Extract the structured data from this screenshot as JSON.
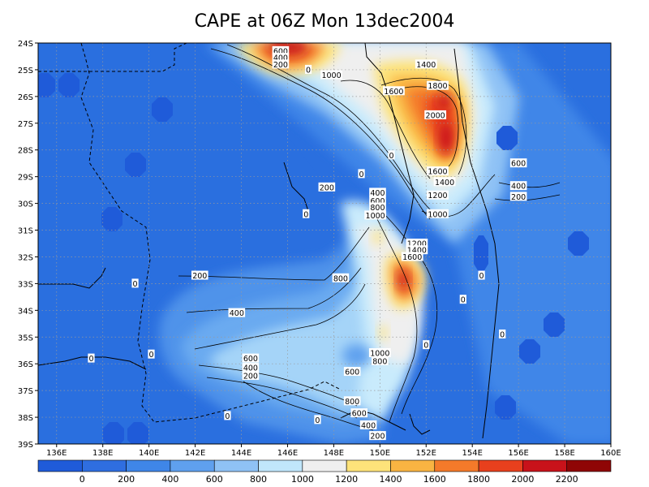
{
  "chart_data": {
    "type": "heatmap",
    "title": "CAPE at 06Z Mon 13dec2004",
    "xlabel": "",
    "ylabel": "",
    "x_ticks": [
      "136E",
      "138E",
      "140E",
      "142E",
      "144E",
      "146E",
      "148E",
      "150E",
      "152E",
      "154E",
      "156E",
      "158E",
      "160E"
    ],
    "y_ticks": [
      "24S",
      "25S",
      "26S",
      "27S",
      "28S",
      "29S",
      "30S",
      "31S",
      "32S",
      "33S",
      "34S",
      "35S",
      "36S",
      "37S",
      "38S",
      "39S"
    ],
    "xlim": [
      135.2,
      160
    ],
    "ylim": [
      -39,
      -24
    ],
    "grid": true,
    "contour_levels": [
      0,
      200,
      400,
      600,
      800,
      1000,
      1200,
      1400,
      1600,
      1800,
      2000,
      2200
    ],
    "colorbar": {
      "labels": [
        "0",
        "200",
        "400",
        "600",
        "800",
        "1000",
        "1200",
        "1400",
        "1600",
        "1800",
        "2000",
        "2200"
      ],
      "colors": [
        "#1f5bd9",
        "#2f6ee0",
        "#3f86e8",
        "#5fa0ee",
        "#8fc2f5",
        "#c0e6fb",
        "#efefef",
        "#fde37a",
        "#f9b442",
        "#f47a2a",
        "#e8401d",
        "#c8121a",
        "#8f0505"
      ]
    },
    "contour_labels": [
      {
        "v": "0",
        "x": 146.9,
        "y": -25.0
      },
      {
        "v": "600",
        "x": 145.7,
        "y": -24.3
      },
      {
        "v": "400",
        "x": 145.7,
        "y": -24.55
      },
      {
        "v": "200",
        "x": 145.7,
        "y": -24.8
      },
      {
        "v": "1000",
        "x": 147.9,
        "y": -25.2
      },
      {
        "v": "1400",
        "x": 152.0,
        "y": -24.8
      },
      {
        "v": "1600",
        "x": 150.6,
        "y": -25.8
      },
      {
        "v": "1800",
        "x": 152.5,
        "y": -25.6
      },
      {
        "v": "2000",
        "x": 152.4,
        "y": -26.7
      },
      {
        "v": "0",
        "x": 150.5,
        "y": -28.2
      },
      {
        "v": "0",
        "x": 149.2,
        "y": -28.9
      },
      {
        "v": "200",
        "x": 147.7,
        "y": -29.4
      },
      {
        "v": "1600",
        "x": 152.5,
        "y": -28.8
      },
      {
        "v": "1400",
        "x": 152.8,
        "y": -29.2
      },
      {
        "v": "1200",
        "x": 152.5,
        "y": -29.7
      },
      {
        "v": "1000",
        "x": 152.5,
        "y": -30.4
      },
      {
        "v": "400",
        "x": 149.9,
        "y": -29.6
      },
      {
        "v": "600",
        "x": 149.9,
        "y": -29.9
      },
      {
        "v": "800",
        "x": 149.9,
        "y": -30.15
      },
      {
        "v": "1000",
        "x": 149.8,
        "y": -30.45
      },
      {
        "v": "0",
        "x": 146.8,
        "y": -30.4
      },
      {
        "v": "600",
        "x": 156.0,
        "y": -28.5
      },
      {
        "v": "400",
        "x": 156.0,
        "y": -29.35
      },
      {
        "v": "200",
        "x": 156.0,
        "y": -29.75
      },
      {
        "v": "1200",
        "x": 151.6,
        "y": -31.5
      },
      {
        "v": "1400",
        "x": 151.6,
        "y": -31.75
      },
      {
        "v": "1600",
        "x": 151.4,
        "y": -32.0
      },
      {
        "v": "0",
        "x": 154.4,
        "y": -32.7
      },
      {
        "v": "0",
        "x": 153.6,
        "y": -33.6
      },
      {
        "v": "200",
        "x": 142.2,
        "y": -32.7
      },
      {
        "v": "0",
        "x": 139.4,
        "y": -33.0
      },
      {
        "v": "800",
        "x": 148.3,
        "y": -32.8
      },
      {
        "v": "400",
        "x": 143.8,
        "y": -34.1
      },
      {
        "v": "0",
        "x": 155.3,
        "y": -34.9
      },
      {
        "v": "0",
        "x": 152.0,
        "y": -35.3
      },
      {
        "v": "600",
        "x": 144.4,
        "y": -35.8
      },
      {
        "v": "400",
        "x": 144.4,
        "y": -36.15
      },
      {
        "v": "200",
        "x": 144.4,
        "y": -36.45
      },
      {
        "v": "0",
        "x": 137.5,
        "y": -35.8
      },
      {
        "v": "0",
        "x": 140.1,
        "y": -35.65
      },
      {
        "v": "1000",
        "x": 150.0,
        "y": -35.6
      },
      {
        "v": "800",
        "x": 150.0,
        "y": -35.9
      },
      {
        "v": "600",
        "x": 148.8,
        "y": -36.3
      },
      {
        "v": "800",
        "x": 148.8,
        "y": -37.4
      },
      {
        "v": "600",
        "x": 149.1,
        "y": -37.85
      },
      {
        "v": "400",
        "x": 149.5,
        "y": -38.3
      },
      {
        "v": "200",
        "x": 149.9,
        "y": -38.7
      },
      {
        "v": "0",
        "x": 143.4,
        "y": -37.95
      },
      {
        "v": "0",
        "x": 147.3,
        "y": -38.1
      }
    ]
  }
}
